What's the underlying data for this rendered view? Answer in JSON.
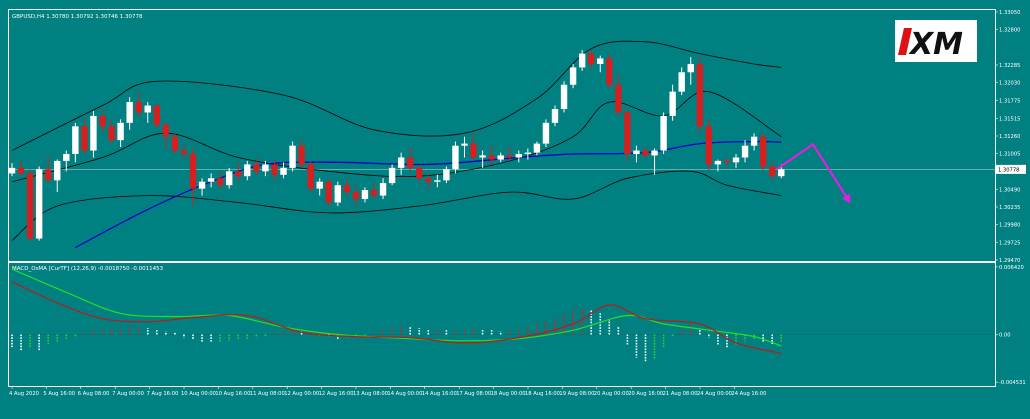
{
  "colors": {
    "background": "#008080",
    "frame": "#ffffff",
    "bull_candle": "#ffffff",
    "bear_candle": "#d42020",
    "bollinger": "#000000",
    "moving_average": "#0000cc",
    "macd_line": "#c01818",
    "signal_line": "#22e022",
    "hist_positive_rising": "#d42020",
    "hist_positive_falling": "#ffffff",
    "hist_negative_falling": "#ffffff",
    "hist_negative_rising": "#33cc33",
    "arrow": "#e020e0",
    "logo_bg": "#ffffff",
    "logo_text": "#111111",
    "logo_accent": "#dd1111"
  },
  "logo": {
    "text": "XM"
  },
  "chart_data": [
    {
      "type": "candlestick",
      "title": "GBPUSD,H4  1.30780 1.30792 1.30746 1.30778",
      "ylim": [
        1.2947,
        1.3305
      ],
      "price_ticks": [
        "1.33050",
        "1.32800",
        "1.32285",
        "1.32030",
        "1.31775",
        "1.31515",
        "1.31260",
        "1.31005",
        "1.30778",
        "1.30490",
        "1.30235",
        "1.29980",
        "1.29725",
        "1.29470"
      ],
      "current_price": 1.30778,
      "current_price_label": "1.30778",
      "x_labels": [
        "4 Aug 2020",
        "5 Aug 16:00",
        "6 Aug 08:00",
        "7 Aug 00:00",
        "7 Aug 16:00",
        "10 Aug 00:00",
        "10 Aug 16:00",
        "11 Aug 08:00",
        "12 Aug 00:00",
        "12 Aug 16:00",
        "13 Aug 08:00",
        "14 Aug 00:00",
        "14 Aug 16:00",
        "17 Aug 08:00",
        "18 Aug 00:00",
        "18 Aug 16:00",
        "19 Aug 08:00",
        "20 Aug 00:00",
        "20 Aug 16:00",
        "21 Aug 08:00",
        "24 Aug 00:00",
        "24 Aug 16:00"
      ],
      "candles": [
        [
          1.3072,
          1.3087,
          1.3068,
          1.308
        ],
        [
          1.308,
          1.3091,
          1.307,
          1.3072
        ],
        [
          1.3072,
          1.3078,
          1.2975,
          1.2978
        ],
        [
          1.2978,
          1.3082,
          1.2975,
          1.3078
        ],
        [
          1.3078,
          1.3096,
          1.306,
          1.3062
        ],
        [
          1.3062,
          1.3092,
          1.3045,
          1.309
        ],
        [
          1.309,
          1.3105,
          1.3075,
          1.31
        ],
        [
          1.31,
          1.3145,
          1.3088,
          1.314
        ],
        [
          1.314,
          1.315,
          1.31,
          1.3105
        ],
        [
          1.3105,
          1.3162,
          1.3095,
          1.3155
        ],
        [
          1.3155,
          1.3165,
          1.313,
          1.314
        ],
        [
          1.314,
          1.315,
          1.3115,
          1.312
        ],
        [
          1.312,
          1.315,
          1.311,
          1.3145
        ],
        [
          1.3145,
          1.3182,
          1.3135,
          1.3175
        ],
        [
          1.3175,
          1.319,
          1.3155,
          1.316
        ],
        [
          1.316,
          1.3175,
          1.3145,
          1.317
        ],
        [
          1.317,
          1.3172,
          1.3138,
          1.3142
        ],
        [
          1.3142,
          1.3147,
          1.311,
          1.3125
        ],
        [
          1.3125,
          1.313,
          1.31,
          1.3105
        ],
        [
          1.3105,
          1.3115,
          1.3092,
          1.31
        ],
        [
          1.31,
          1.311,
          1.3025,
          1.305
        ],
        [
          1.305,
          1.3065,
          1.304,
          1.306
        ],
        [
          1.306,
          1.3072,
          1.3052,
          1.3065
        ],
        [
          1.3065,
          1.3075,
          1.305,
          1.3055
        ],
        [
          1.3055,
          1.308,
          1.305,
          1.3075
        ],
        [
          1.3075,
          1.3088,
          1.306,
          1.3068
        ],
        [
          1.3068,
          1.309,
          1.3062,
          1.3085
        ],
        [
          1.3085,
          1.3095,
          1.307,
          1.3075
        ],
        [
          1.3075,
          1.309,
          1.3068,
          1.3085
        ],
        [
          1.3085,
          1.3092,
          1.3062,
          1.307
        ],
        [
          1.307,
          1.3088,
          1.3065,
          1.308
        ],
        [
          1.308,
          1.3118,
          1.3075,
          1.3112
        ],
        [
          1.3112,
          1.3122,
          1.308,
          1.3085
        ],
        [
          1.3085,
          1.309,
          1.3045,
          1.305
        ],
        [
          1.305,
          1.3065,
          1.304,
          1.306
        ],
        [
          1.306,
          1.3065,
          1.3025,
          1.303
        ],
        [
          1.303,
          1.306,
          1.3025,
          1.3055
        ],
        [
          1.3055,
          1.3065,
          1.304,
          1.3045
        ],
        [
          1.3045,
          1.3055,
          1.3025,
          1.3035
        ],
        [
          1.3035,
          1.3052,
          1.303,
          1.3048
        ],
        [
          1.3048,
          1.3058,
          1.3035,
          1.304
        ],
        [
          1.304,
          1.3065,
          1.3035,
          1.3058
        ],
        [
          1.3058,
          1.3085,
          1.3055,
          1.308
        ],
        [
          1.308,
          1.3102,
          1.307,
          1.3095
        ],
        [
          1.3095,
          1.311,
          1.3075,
          1.308
        ],
        [
          1.308,
          1.3085,
          1.306,
          1.3065
        ],
        [
          1.3065,
          1.3072,
          1.305,
          1.306
        ],
        [
          1.306,
          1.307,
          1.3052,
          1.3062
        ],
        [
          1.3062,
          1.3082,
          1.3058,
          1.3078
        ],
        [
          1.3078,
          1.3118,
          1.3072,
          1.3112
        ],
        [
          1.3112,
          1.3125,
          1.3095,
          1.3115
        ],
        [
          1.3115,
          1.313,
          1.309,
          1.3095
        ],
        [
          1.3095,
          1.3105,
          1.308,
          1.3098
        ],
        [
          1.3098,
          1.3112,
          1.3085,
          1.3092
        ],
        [
          1.3092,
          1.3102,
          1.3088,
          1.3098
        ],
        [
          1.3098,
          1.311,
          1.309,
          1.3095
        ],
        [
          1.3095,
          1.3105,
          1.3088,
          1.31
        ],
        [
          1.31,
          1.3108,
          1.3092,
          1.3102
        ],
        [
          1.3102,
          1.3118,
          1.3098,
          1.3115
        ],
        [
          1.3115,
          1.315,
          1.311,
          1.3145
        ],
        [
          1.3145,
          1.317,
          1.314,
          1.3165
        ],
        [
          1.3165,
          1.3205,
          1.316,
          1.32
        ],
        [
          1.32,
          1.323,
          1.3195,
          1.3225
        ],
        [
          1.3225,
          1.325,
          1.322,
          1.3245
        ],
        [
          1.3245,
          1.325,
          1.3222,
          1.323
        ],
        [
          1.323,
          1.3242,
          1.3218,
          1.3238
        ],
        [
          1.3238,
          1.3245,
          1.3195,
          1.32
        ],
        [
          1.32,
          1.3215,
          1.3155,
          1.316
        ],
        [
          1.316,
          1.3165,
          1.309,
          1.31
        ],
        [
          1.31,
          1.3112,
          1.3088,
          1.3105
        ],
        [
          1.3105,
          1.311,
          1.3095,
          1.3098
        ],
        [
          1.3098,
          1.3108,
          1.307,
          1.3105
        ],
        [
          1.3105,
          1.316,
          1.31,
          1.3155
        ],
        [
          1.3155,
          1.32,
          1.3148,
          1.319
        ],
        [
          1.319,
          1.3225,
          1.3185,
          1.3218
        ],
        [
          1.3218,
          1.324,
          1.32,
          1.323
        ],
        [
          1.323,
          1.324,
          1.313,
          1.314
        ],
        [
          1.314,
          1.315,
          1.3075,
          1.3085
        ],
        [
          1.3085,
          1.3092,
          1.3075,
          1.309
        ],
        [
          1.309,
          1.3095,
          1.3082,
          1.3088
        ],
        [
          1.3088,
          1.31,
          1.308,
          1.3095
        ],
        [
          1.3095,
          1.312,
          1.3088,
          1.3112
        ],
        [
          1.3112,
          1.313,
          1.3105,
          1.3125
        ],
        [
          1.3125,
          1.313,
          1.3075,
          1.3082
        ],
        [
          1.3082,
          1.3088,
          1.3062,
          1.3068
        ],
        [
          1.3068,
          1.3085,
          1.3065,
          1.3078
        ]
      ],
      "bollinger_upper": [
        [
          0,
          1.3105
        ],
        [
          10,
          1.317
        ],
        [
          16,
          1.3205
        ],
        [
          30,
          1.3185
        ],
        [
          40,
          1.3135
        ],
        [
          50,
          1.313
        ],
        [
          58,
          1.318
        ],
        [
          64,
          1.3252
        ],
        [
          70,
          1.3262
        ],
        [
          76,
          1.3245
        ],
        [
          82,
          1.323
        ],
        [
          85,
          1.3225
        ]
      ],
      "bollinger_middle": [
        [
          0,
          1.306
        ],
        [
          10,
          1.3095
        ],
        [
          17,
          1.313
        ],
        [
          25,
          1.3095
        ],
        [
          35,
          1.3075
        ],
        [
          45,
          1.3068
        ],
        [
          55,
          1.309
        ],
        [
          62,
          1.3125
        ],
        [
          66,
          1.3175
        ],
        [
          72,
          1.3155
        ],
        [
          77,
          1.319
        ],
        [
          85,
          1.3125
        ]
      ],
      "bollinger_lower": [
        [
          0,
          1.2975
        ],
        [
          5,
          1.3025
        ],
        [
          15,
          1.304
        ],
        [
          25,
          1.303
        ],
        [
          35,
          1.3015
        ],
        [
          45,
          1.3025
        ],
        [
          55,
          1.3045
        ],
        [
          62,
          1.3035
        ],
        [
          68,
          1.3065
        ],
        [
          75,
          1.3075
        ],
        [
          79,
          1.3055
        ],
        [
          85,
          1.304
        ]
      ],
      "moving_average": [
        [
          7,
          1.2965
        ],
        [
          15,
          1.302
        ],
        [
          22,
          1.306
        ],
        [
          28,
          1.3085
        ],
        [
          36,
          1.3088
        ],
        [
          46,
          1.3085
        ],
        [
          56,
          1.3095
        ],
        [
          62,
          1.31
        ],
        [
          70,
          1.3102
        ],
        [
          76,
          1.3115
        ],
        [
          82,
          1.3118
        ],
        [
          85,
          1.3117
        ]
      ],
      "forecast_arrow": {
        "start": [
          84.5,
          1.3078
        ],
        "peak": [
          88.5,
          1.3114
        ],
        "end": [
          92.5,
          1.3032
        ]
      }
    },
    {
      "type": "macd",
      "title": "MACD_OsMA [CurTF] (12,26,9) -0.0018750 -0.0011453",
      "ylim": [
        -0.0047,
        0.0065
      ],
      "tick_labels": [
        [
          "0.006420",
          0.00642
        ],
        [
          "0.00",
          0.0
        ],
        [
          "-0.004531",
          -0.004531
        ]
      ],
      "macd_line": [
        [
          0,
          0.005
        ],
        [
          5,
          0.003
        ],
        [
          10,
          0.0015
        ],
        [
          15,
          0.0012
        ],
        [
          20,
          0.0016
        ],
        [
          26,
          0.0018
        ],
        [
          32,
          0.0002
        ],
        [
          38,
          -0.0002
        ],
        [
          44,
          -0.0003
        ],
        [
          50,
          -0.0008
        ],
        [
          56,
          -0.0003
        ],
        [
          62,
          0.001
        ],
        [
          66,
          0.0028
        ],
        [
          70,
          0.0015
        ],
        [
          76,
          0.001
        ],
        [
          80,
          -0.0008
        ],
        [
          85,
          -0.0018
        ]
      ],
      "signal_line": [
        [
          0,
          0.0062
        ],
        [
          6,
          0.004
        ],
        [
          12,
          0.002
        ],
        [
          18,
          0.0017
        ],
        [
          24,
          0.0018
        ],
        [
          30,
          0.0007
        ],
        [
          36,
          0.0
        ],
        [
          44,
          -0.0004
        ],
        [
          50,
          -0.0006
        ],
        [
          56,
          -0.0004
        ],
        [
          62,
          0.0004
        ],
        [
          68,
          0.0018
        ],
        [
          72,
          0.001
        ],
        [
          78,
          0.0003
        ],
        [
          82,
          -0.0002
        ],
        [
          85,
          -0.0011
        ]
      ],
      "histogram": [
        -0.0012,
        -0.0015,
        -0.0012,
        -0.0015,
        -0.0009,
        -0.0007,
        -0.0005,
        -0.0003,
        0.0002,
        0.0004,
        0.0005,
        0.0006,
        0.0006,
        0.0007,
        0.0007,
        0.0006,
        0.0005,
        0.0003,
        0.0002,
        -0.0003,
        -0.0005,
        -0.0007,
        -0.0008,
        -0.0007,
        -0.0006,
        -0.0005,
        -0.0004,
        -0.0003,
        -0.0002,
        0.0001,
        0.0002,
        0.0004,
        0.0003,
        0.0001,
        -0.0001,
        -0.0002,
        -0.0004,
        -0.0003,
        -0.0002,
        -0.0001,
        0.0002,
        0.0005,
        0.0007,
        0.0008,
        0.0007,
        0.0006,
        0.0005,
        0.0005,
        0.0004,
        0.0004,
        0.0005,
        0.0006,
        0.0005,
        0.0004,
        0.0003,
        0.0004,
        0.0005,
        0.0007,
        0.001,
        0.0013,
        0.0016,
        0.002,
        0.0023,
        0.0025,
        0.0024,
        0.002,
        0.0014,
        0.0008,
        -0.001,
        -0.0022,
        -0.0026,
        -0.0024,
        -0.0012,
        -0.0002,
        0.0005,
        0.0009,
        0.0005,
        -0.0003,
        -0.001,
        -0.0013,
        -0.001,
        -0.0006,
        -0.0005,
        -0.0007,
        -0.0009,
        -0.0008
      ]
    }
  ]
}
